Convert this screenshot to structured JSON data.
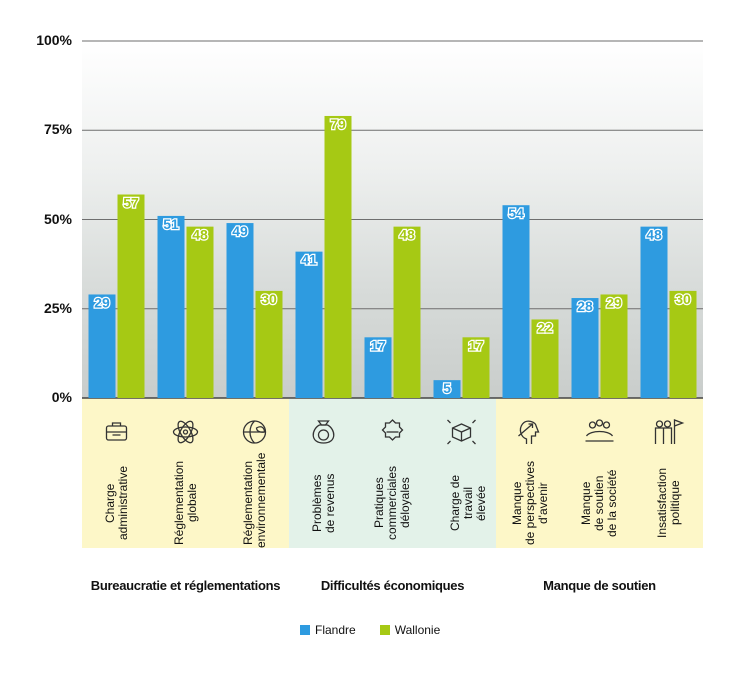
{
  "chart_data": {
    "type": "bar",
    "categories": [
      "Charge\nadministrative",
      "Réglementation\nglobale",
      "Réglementation\nenvironnementale",
      "Problèmes\nde revenus",
      "Pratiques\ncommerciales\ndéloyales",
      "Charge de travail\nélevée",
      "Manque\nde perspectives\nd'avenir",
      "Manque\nde soutien\nde la société",
      "Insatisfaction\npolitique"
    ],
    "series": [
      {
        "name": "Flandre",
        "color": "#2e9be0",
        "values": [
          29,
          51,
          49,
          41,
          17,
          5,
          54,
          28,
          48
        ]
      },
      {
        "name": "Wallonie",
        "color": "#a6c914",
        "values": [
          57,
          48,
          30,
          79,
          48,
          17,
          22,
          29,
          30
        ]
      }
    ],
    "ylim": [
      0,
      100
    ],
    "yticks": [
      "0%",
      "25%",
      "50%",
      "75%",
      "100%"
    ],
    "groups": [
      {
        "label": "Bureaucratie et réglementations",
        "color": "#fdf7c8",
        "categories": [
          0,
          1,
          2
        ]
      },
      {
        "label": "Difficultés économiques",
        "color": "#e3f2e9",
        "categories": [
          3,
          4,
          5
        ]
      },
      {
        "label": "Manque de soutien",
        "color": "#fdf7c8",
        "categories": [
          6,
          7,
          8
        ]
      }
    ],
    "category_icons": [
      "briefcase-icon",
      "atom-icon",
      "globe-leaf-icon",
      "money-bag-icon",
      "badge-icon",
      "box-arrows-icon",
      "head-arrow-icon",
      "group-hands-icon",
      "people-flag-icon"
    ],
    "grid": true,
    "legend_position": "bottom"
  }
}
